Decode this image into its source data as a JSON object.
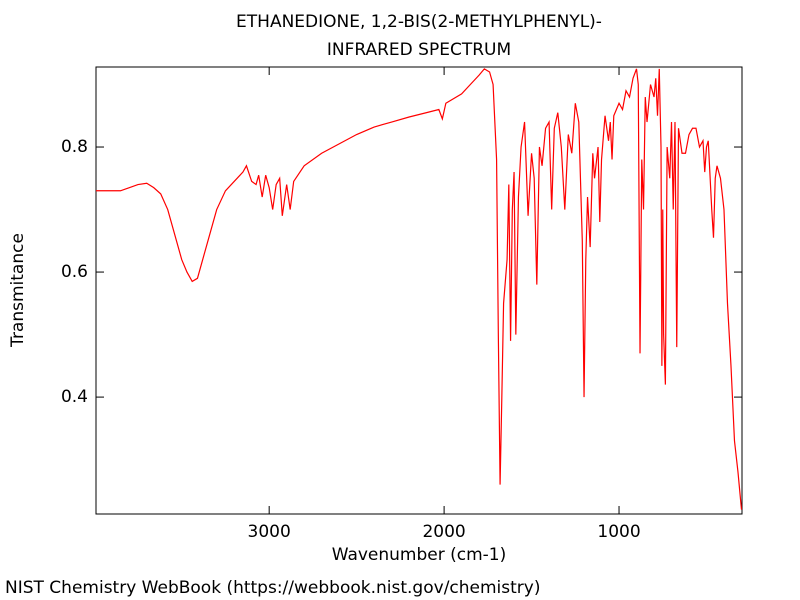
{
  "chart_data": {
    "type": "line",
    "title": "ETHANEDIONE, 1,2-BIS(2-METHYLPHENYL)-",
    "subtitle": "INFRARED SPECTRUM",
    "xlabel": "Wavenumber (cm-1)",
    "ylabel": "Transmitance",
    "source": "NIST Chemistry WebBook (https://webbook.nist.gov/chemistry)",
    "color": "#ff0000",
    "xlim": [
      3990,
      297
    ],
    "ylim": [
      0.213,
      0.928
    ],
    "xticks": [
      3000,
      2000,
      1000
    ],
    "yticks": [
      0.4,
      0.6,
      0.8
    ],
    "x": [
      3990,
      3850,
      3750,
      3700,
      3660,
      3620,
      3580,
      3540,
      3500,
      3470,
      3440,
      3410,
      3380,
      3340,
      3300,
      3250,
      3200,
      3150,
      3130,
      3100,
      3075,
      3060,
      3040,
      3020,
      3000,
      2980,
      2960,
      2940,
      2925,
      2900,
      2880,
      2860,
      2800,
      2700,
      2600,
      2500,
      2400,
      2300,
      2200,
      2100,
      2030,
      2010,
      1990,
      1900,
      1850,
      1800,
      1770,
      1740,
      1720,
      1700,
      1690,
      1680,
      1670,
      1660,
      1640,
      1630,
      1620,
      1610,
      1600,
      1590,
      1575,
      1560,
      1540,
      1520,
      1500,
      1485,
      1470,
      1455,
      1440,
      1420,
      1400,
      1385,
      1370,
      1350,
      1330,
      1310,
      1290,
      1270,
      1250,
      1230,
      1210,
      1200,
      1190,
      1180,
      1165,
      1150,
      1140,
      1120,
      1110,
      1100,
      1080,
      1060,
      1050,
      1040,
      1030,
      1000,
      980,
      960,
      940,
      920,
      900,
      890,
      880,
      870,
      860,
      850,
      840,
      820,
      800,
      790,
      780,
      770,
      760,
      755,
      750,
      745,
      735,
      725,
      710,
      700,
      690,
      680,
      670,
      660,
      640,
      620,
      600,
      580,
      560,
      540,
      520,
      510,
      500,
      490,
      470,
      460,
      450,
      440,
      420,
      400,
      380,
      360,
      340,
      320,
      300
    ],
    "values": [
      0.73,
      0.73,
      0.74,
      0.742,
      0.735,
      0.725,
      0.7,
      0.66,
      0.62,
      0.6,
      0.585,
      0.59,
      0.62,
      0.66,
      0.7,
      0.73,
      0.745,
      0.76,
      0.77,
      0.745,
      0.74,
      0.755,
      0.72,
      0.755,
      0.735,
      0.7,
      0.74,
      0.75,
      0.69,
      0.74,
      0.7,
      0.745,
      0.77,
      0.79,
      0.805,
      0.82,
      0.832,
      0.84,
      0.848,
      0.855,
      0.86,
      0.845,
      0.87,
      0.885,
      0.9,
      0.915,
      0.925,
      0.92,
      0.9,
      0.78,
      0.5,
      0.26,
      0.4,
      0.55,
      0.62,
      0.74,
      0.49,
      0.7,
      0.76,
      0.5,
      0.72,
      0.8,
      0.84,
      0.69,
      0.79,
      0.75,
      0.58,
      0.8,
      0.77,
      0.83,
      0.84,
      0.7,
      0.83,
      0.855,
      0.8,
      0.7,
      0.82,
      0.79,
      0.87,
      0.84,
      0.65,
      0.4,
      0.62,
      0.72,
      0.64,
      0.79,
      0.75,
      0.8,
      0.68,
      0.78,
      0.85,
      0.81,
      0.84,
      0.78,
      0.85,
      0.87,
      0.86,
      0.89,
      0.88,
      0.91,
      0.925,
      0.9,
      0.47,
      0.78,
      0.7,
      0.88,
      0.84,
      0.9,
      0.88,
      0.91,
      0.85,
      0.925,
      0.8,
      0.45,
      0.7,
      0.5,
      0.42,
      0.8,
      0.75,
      0.84,
      0.7,
      0.84,
      0.48,
      0.83,
      0.79,
      0.79,
      0.82,
      0.83,
      0.83,
      0.8,
      0.81,
      0.76,
      0.8,
      0.81,
      0.7,
      0.655,
      0.75,
      0.77,
      0.75,
      0.7,
      0.55,
      0.45,
      0.33,
      0.28,
      0.22
    ]
  }
}
